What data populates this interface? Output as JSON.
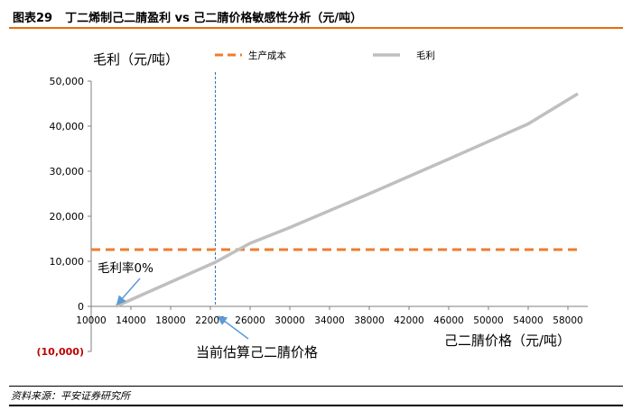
{
  "figure": {
    "number": "图表29",
    "title": "丁二烯制己二腈盈利 vs 己二腈价格敏感性分析（元/吨）",
    "source": "资料来源：平安证券研究所"
  },
  "chart_data": {
    "type": "line",
    "ylabel": "毛利（元/吨）",
    "xlabel": "己二腈价格（元/吨）",
    "xlim": [
      10000,
      60000
    ],
    "ylim": [
      -10000,
      50000
    ],
    "x_ticks": [
      10000,
      14000,
      18000,
      22000,
      26000,
      30000,
      34000,
      38000,
      42000,
      46000,
      50000,
      54000,
      58000
    ],
    "y_ticks": [
      -10000,
      0,
      10000,
      20000,
      30000,
      40000,
      50000
    ],
    "x_tick_labels": [
      "10000",
      "14000",
      "18000",
      "22000",
      "26000",
      "30000",
      "34000",
      "38000",
      "42000",
      "46000",
      "50000",
      "54000",
      "58000"
    ],
    "y_tick_labels": [
      "(10,000)",
      "0",
      "10,000",
      "20,000",
      "30,000",
      "40,000",
      "50,000"
    ],
    "legend_position": "top",
    "series": [
      {
        "name": "生产成本",
        "style": "dashed",
        "color": "#ed7d31",
        "x": [
          10000,
          59000
        ],
        "y": [
          12600,
          12600
        ]
      },
      {
        "name": "毛利",
        "style": "solid",
        "color": "#bfbfbf",
        "x": [
          12500,
          22500,
          26000,
          30000,
          38000,
          46000,
          54000,
          59000
        ],
        "y": [
          0,
          9800,
          14000,
          17500,
          25000,
          32700,
          40500,
          47200
        ]
      }
    ],
    "vline": {
      "x": 22500,
      "color": "#2e75b6"
    },
    "annotations": [
      {
        "text": "毛利率0%",
        "target_x": 12500,
        "target_y": 0
      },
      {
        "text": "当前估算己二腈价格",
        "target_x": 22500,
        "target_y": -10000
      }
    ]
  }
}
